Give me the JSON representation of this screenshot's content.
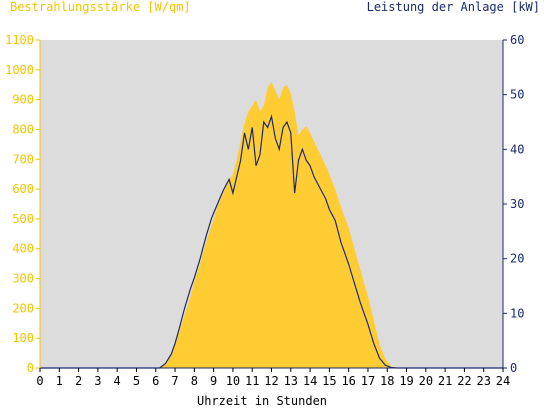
{
  "chart_data": {
    "type": "area",
    "title_left": "Bestrahlungsstärke [W/qm]",
    "title_right": "Leistung der Anlage [kW]",
    "xlabel": "Uhrzeit in Stunden",
    "x_ticks": [
      "0",
      "1",
      "2",
      "3",
      "4",
      "5",
      "6",
      "7",
      "8",
      "9",
      "10",
      "11",
      "12",
      "13",
      "14",
      "15",
      "16",
      "17",
      "18",
      "19",
      "20",
      "21",
      "22",
      "23",
      "24"
    ],
    "xlim": [
      0,
      24
    ],
    "y_left_ticks": [
      "0",
      "100",
      "200",
      "300",
      "400",
      "500",
      "600",
      "700",
      "800",
      "900",
      "1000",
      "1100"
    ],
    "ylim_left": [
      0,
      1100
    ],
    "y_right_ticks": [
      "0",
      "10",
      "20",
      "30",
      "40",
      "50",
      "60"
    ],
    "ylim_right": [
      0,
      60
    ],
    "grid": false,
    "colors": {
      "irradiance": "#ffcc33",
      "power": "#1a2a6c",
      "plot_bg": "#dcdcdc",
      "left_axis": "#f5c400",
      "right_axis": "#1a2a6c"
    },
    "series": [
      {
        "axis": "left",
        "style": "area",
        "x": [
          0,
          6.2,
          6.5,
          6.8,
          7.0,
          7.2,
          7.5,
          7.8,
          8.0,
          8.3,
          8.6,
          8.9,
          9.2,
          9.5,
          9.8,
          10.0,
          10.2,
          10.4,
          10.6,
          10.8,
          11.0,
          11.2,
          11.4,
          11.6,
          11.8,
          12.0,
          12.2,
          12.4,
          12.6,
          12.8,
          13.0,
          13.2,
          13.4,
          13.6,
          13.8,
          14.0,
          14.2,
          14.5,
          14.8,
          15.0,
          15.3,
          15.6,
          16.0,
          16.3,
          16.6,
          17.0,
          17.3,
          17.6,
          17.9,
          18.2,
          18.5,
          24
        ],
        "values": [
          0,
          0,
          15,
          40,
          80,
          120,
          180,
          240,
          290,
          350,
          420,
          480,
          540,
          590,
          630,
          650,
          700,
          760,
          820,
          860,
          880,
          900,
          860,
          880,
          940,
          960,
          930,
          900,
          940,
          950,
          920,
          860,
          780,
          800,
          810,
          790,
          760,
          720,
          680,
          650,
          600,
          540,
          470,
          400,
          330,
          240,
          160,
          80,
          30,
          5,
          0,
          0
        ]
      },
      {
        "axis": "right",
        "style": "line",
        "x": [
          0,
          6.2,
          6.5,
          6.8,
          7.0,
          7.2,
          7.5,
          7.8,
          8.0,
          8.3,
          8.6,
          8.9,
          9.2,
          9.5,
          9.8,
          10.0,
          10.2,
          10.4,
          10.6,
          10.8,
          11.0,
          11.2,
          11.4,
          11.6,
          11.8,
          12.0,
          12.2,
          12.4,
          12.6,
          12.8,
          13.0,
          13.2,
          13.4,
          13.6,
          13.8,
          14.0,
          14.2,
          14.5,
          14.8,
          15.0,
          15.3,
          15.6,
          16.0,
          16.3,
          16.6,
          17.0,
          17.3,
          17.6,
          17.9,
          18.2,
          18.5,
          24
        ],
        "values": [
          0,
          0,
          0.8,
          2.5,
          4.5,
          7,
          11,
          14.5,
          16.5,
          20,
          24,
          27.5,
          30,
          32.5,
          34.5,
          32,
          35,
          38,
          43,
          40,
          44,
          37,
          39,
          45,
          44,
          46,
          42,
          40,
          44,
          45,
          43,
          32,
          38,
          40,
          38,
          37,
          35,
          33,
          31,
          29,
          27,
          23,
          19,
          15.5,
          12,
          8,
          4.5,
          1.8,
          0.5,
          0.1,
          0,
          0
        ]
      }
    ]
  }
}
